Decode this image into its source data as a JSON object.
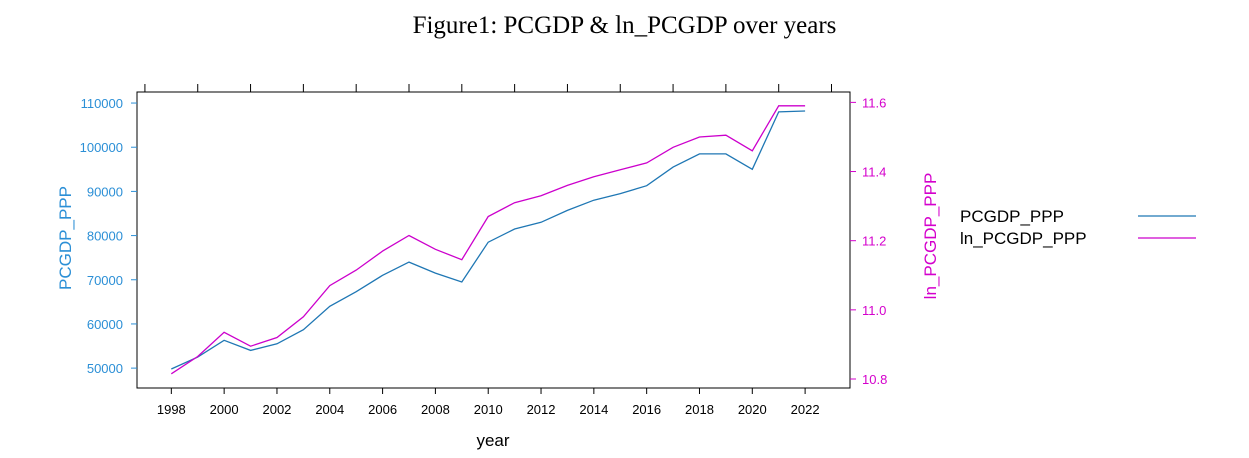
{
  "chart_data": {
    "type": "line",
    "title": "Figure1: PCGDP & ln_PCGDP over years",
    "xlabel": "year",
    "ylabel_left": "PCGDP_PPP",
    "ylabel_right": "ln_PCGDP_PPP",
    "xlim": [
      1996.7,
      2023.7
    ],
    "x_ticks": [
      1998,
      2000,
      2002,
      2004,
      2006,
      2008,
      2010,
      2012,
      2014,
      2016,
      2018,
      2020,
      2022
    ],
    "x_tick_labels": [
      "1998",
      "2000",
      "2002",
      "2004",
      "2006",
      "2008",
      "2010",
      "2012",
      "2014",
      "2016",
      "2018",
      "2020",
      "2022"
    ],
    "top_ticks": [
      1997,
      1999,
      2001,
      2003,
      2005,
      2007,
      2009,
      2011,
      2013,
      2015,
      2017,
      2019,
      2021,
      2023
    ],
    "ylim_left": [
      45500,
      112500
    ],
    "y_ticks_left": [
      50000,
      60000,
      70000,
      80000,
      90000,
      100000,
      110000
    ],
    "y_tick_labels_left": [
      "50000",
      "60000",
      "70000",
      "80000",
      "90000",
      "100000",
      "110000"
    ],
    "ylim_right": [
      10.774,
      11.63
    ],
    "y_ticks_right": [
      10.8,
      11.0,
      11.2,
      11.4,
      11.6
    ],
    "y_tick_labels_right": [
      "10.8",
      "11.0",
      "11.2",
      "11.4",
      "11.6"
    ],
    "grid": false,
    "legend_position": "right",
    "colors": {
      "left_axis": "#2b8fd6",
      "right_axis": "#d400cc",
      "series1": "#1f77b4",
      "series2": "#cc00cc"
    },
    "x": [
      1998,
      1999,
      2000,
      2001,
      2002,
      2003,
      2004,
      2005,
      2006,
      2007,
      2008,
      2009,
      2010,
      2011,
      2012,
      2013,
      2014,
      2015,
      2016,
      2017,
      2018,
      2019,
      2020,
      2021,
      2022
    ],
    "series": [
      {
        "name": "PCGDP_PPP",
        "axis": "left",
        "values": [
          49800,
          52500,
          56300,
          54000,
          55500,
          58700,
          64000,
          67300,
          71000,
          74000,
          71500,
          69500,
          78500,
          81500,
          83000,
          85700,
          88000,
          89500,
          91300,
          95500,
          98500,
          98500,
          95000,
          108000,
          108200
        ]
      },
      {
        "name": "ln_PCGDP_PPP",
        "axis": "right",
        "values": [
          10.815,
          10.865,
          10.935,
          10.895,
          10.92,
          10.98,
          11.07,
          11.115,
          11.17,
          11.215,
          11.175,
          11.145,
          11.27,
          11.31,
          11.33,
          11.36,
          11.385,
          11.405,
          11.425,
          11.47,
          11.5,
          11.505,
          11.46,
          11.59,
          11.59
        ]
      }
    ]
  }
}
